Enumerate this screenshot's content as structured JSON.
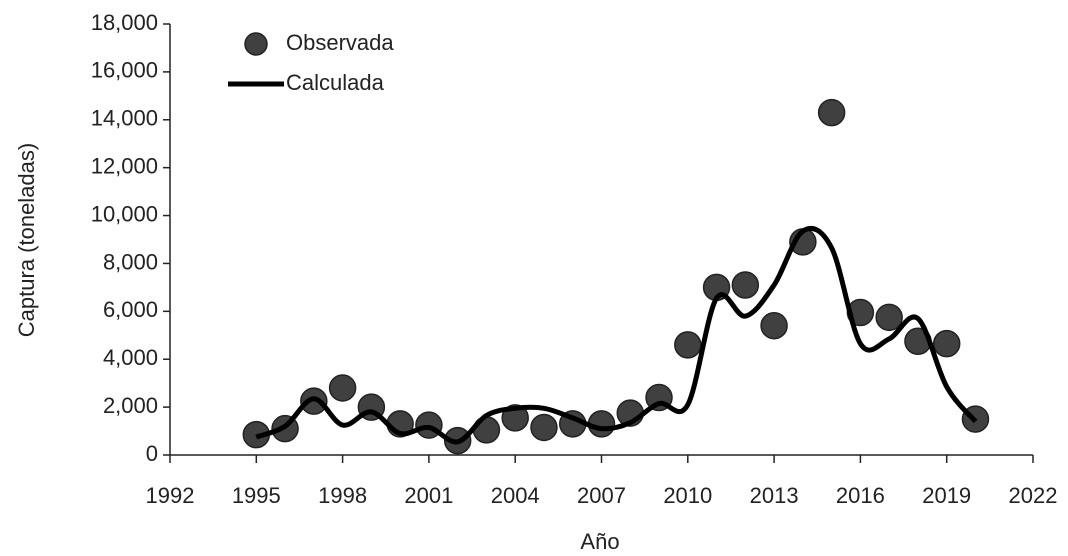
{
  "chart_data": {
    "type": "scatter_line",
    "xlabel": "Año",
    "ylabel": "Captura (toneladas)",
    "xlim": [
      1992,
      2022
    ],
    "xticks": [
      1992,
      1995,
      1998,
      2001,
      2004,
      2007,
      2010,
      2013,
      2016,
      2019,
      2022
    ],
    "ylim": [
      0,
      18000
    ],
    "yticks": [
      0,
      {
        "value": 2000,
        "label": "2,000"
      },
      {
        "value": 4000,
        "label": "4,000"
      },
      {
        "value": 6000,
        "label": "6,000"
      },
      {
        "value": 8000,
        "label": "8,000"
      },
      {
        "value": 10000,
        "label": "10,000"
      },
      {
        "value": 12000,
        "label": "12,000"
      },
      {
        "value": 14000,
        "label": "14,000"
      },
      {
        "value": 16000,
        "label": "16,000"
      },
      {
        "value": 18000,
        "label": "18,000"
      }
    ],
    "x": [
      1995,
      1996,
      1997,
      1998,
      1999,
      2000,
      2001,
      2002,
      2003,
      2004,
      2005,
      2006,
      2007,
      2008,
      2009,
      2010,
      2011,
      2012,
      2013,
      2014,
      2015,
      2016,
      2017,
      2018,
      2019,
      2020
    ],
    "legend": "upper left",
    "series": [
      {
        "name": "Observada",
        "kind": "scatter",
        "color": "#404040",
        "values": [
          850,
          1100,
          2250,
          2800,
          2000,
          1300,
          1250,
          600,
          1050,
          1550,
          1150,
          1300,
          1300,
          1750,
          2400,
          4600,
          7000,
          7100,
          5400,
          8900,
          14300,
          5950,
          5750,
          4750,
          4650,
          1500
        ]
      },
      {
        "name": "Calculada",
        "kind": "line",
        "color": "#000000",
        "values": [
          750,
          1200,
          2350,
          1250,
          1800,
          900,
          1150,
          550,
          1650,
          1950,
          1950,
          1550,
          1100,
          1350,
          2150,
          2100,
          6550,
          5800,
          7100,
          9350,
          8650,
          4650,
          4850,
          5700,
          2850,
          1400
        ]
      }
    ]
  }
}
